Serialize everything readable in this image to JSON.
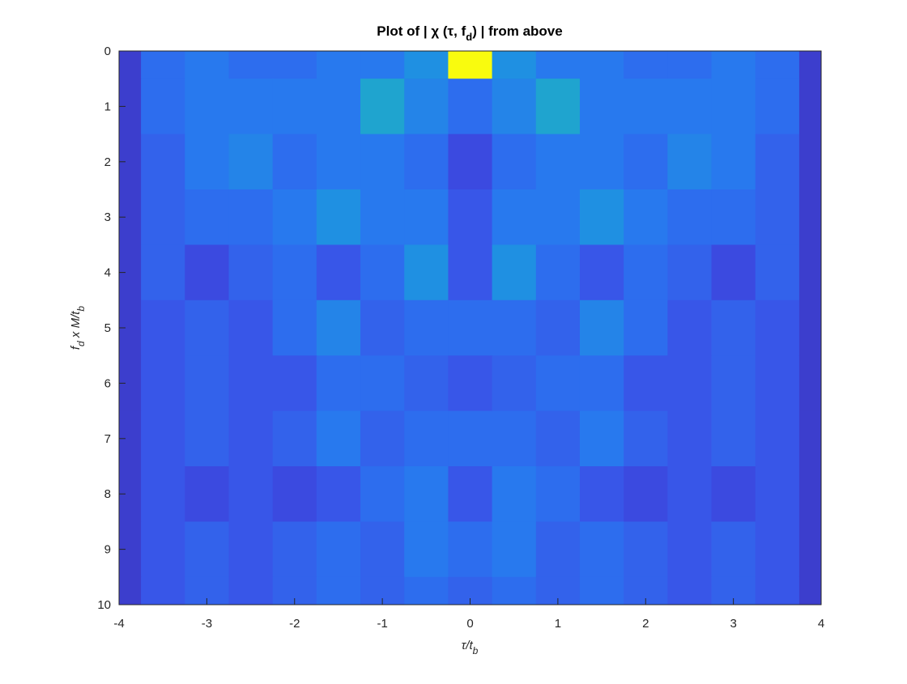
{
  "chart_data": {
    "type": "heatmap",
    "title": [
      "Plot of | χ (τ,  f",
      "d",
      ") | from above"
    ],
    "x_label": [
      "τ/t",
      "b"
    ],
    "y_label": [
      "f",
      "d",
      " x M/t",
      "b"
    ],
    "x": [
      -4,
      -3.5,
      -3,
      -2.5,
      -2,
      -1.5,
      -1,
      -0.5,
      0,
      0.5,
      1,
      1.5,
      2,
      2.5,
      3,
      3.5,
      4
    ],
    "y": [
      0,
      1,
      2,
      3,
      4,
      5,
      6,
      7,
      8,
      9,
      10
    ],
    "z": [
      [
        0.1,
        0.3,
        0.35,
        0.3,
        0.3,
        0.35,
        0.35,
        0.45,
        1.0,
        0.45,
        0.35,
        0.35,
        0.3,
        0.3,
        0.35,
        0.3,
        0.1
      ],
      [
        0.1,
        0.3,
        0.35,
        0.35,
        0.35,
        0.35,
        0.55,
        0.4,
        0.3,
        0.4,
        0.55,
        0.35,
        0.35,
        0.35,
        0.35,
        0.3,
        0.1
      ],
      [
        0.1,
        0.25,
        0.35,
        0.4,
        0.3,
        0.35,
        0.35,
        0.3,
        0.15,
        0.3,
        0.35,
        0.35,
        0.3,
        0.4,
        0.35,
        0.25,
        0.1
      ],
      [
        0.1,
        0.25,
        0.3,
        0.3,
        0.35,
        0.45,
        0.35,
        0.35,
        0.2,
        0.35,
        0.35,
        0.45,
        0.35,
        0.3,
        0.3,
        0.25,
        0.1
      ],
      [
        0.1,
        0.25,
        0.15,
        0.25,
        0.3,
        0.2,
        0.3,
        0.45,
        0.2,
        0.45,
        0.3,
        0.2,
        0.3,
        0.25,
        0.15,
        0.25,
        0.1
      ],
      [
        0.1,
        0.2,
        0.25,
        0.2,
        0.3,
        0.4,
        0.25,
        0.3,
        0.3,
        0.3,
        0.25,
        0.4,
        0.3,
        0.2,
        0.25,
        0.2,
        0.1
      ],
      [
        0.1,
        0.2,
        0.25,
        0.2,
        0.2,
        0.3,
        0.3,
        0.25,
        0.2,
        0.25,
        0.3,
        0.3,
        0.2,
        0.2,
        0.25,
        0.2,
        0.1
      ],
      [
        0.1,
        0.2,
        0.25,
        0.2,
        0.25,
        0.35,
        0.25,
        0.3,
        0.3,
        0.3,
        0.25,
        0.35,
        0.25,
        0.2,
        0.25,
        0.2,
        0.1
      ],
      [
        0.1,
        0.2,
        0.15,
        0.2,
        0.15,
        0.2,
        0.3,
        0.35,
        0.2,
        0.35,
        0.3,
        0.2,
        0.15,
        0.2,
        0.15,
        0.2,
        0.1
      ],
      [
        0.1,
        0.2,
        0.25,
        0.2,
        0.25,
        0.3,
        0.25,
        0.35,
        0.3,
        0.35,
        0.25,
        0.3,
        0.25,
        0.2,
        0.25,
        0.2,
        0.1
      ],
      [
        0.1,
        0.2,
        0.25,
        0.2,
        0.25,
        0.3,
        0.25,
        0.3,
        0.25,
        0.3,
        0.25,
        0.3,
        0.25,
        0.2,
        0.25,
        0.2,
        0.1
      ]
    ],
    "clim": [
      0,
      1
    ],
    "colormap": [
      "#3e26a8",
      "#3b4ee6",
      "#2a75f0",
      "#1a9bdc",
      "#29b9b0",
      "#a3bf4a",
      "#f9fb0e"
    ],
    "xlim": [
      -4,
      4
    ],
    "xticks": [
      -4,
      -3,
      -2,
      -1,
      0,
      1,
      2,
      3,
      4
    ],
    "ylim": [
      0,
      10
    ],
    "yticks": [
      0,
      1,
      2,
      3,
      4,
      5,
      6,
      7,
      8,
      9,
      10
    ],
    "y_reversed": true
  }
}
